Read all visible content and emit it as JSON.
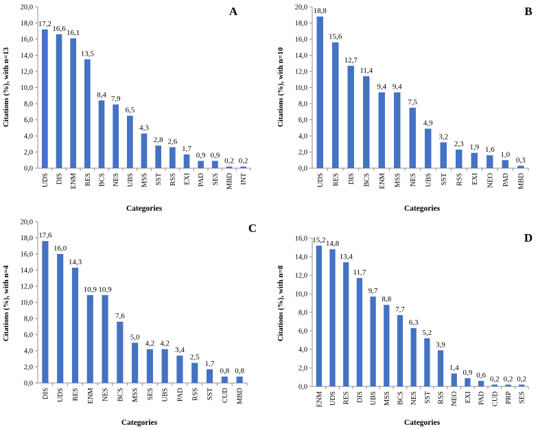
{
  "figure": {
    "colors": {
      "bar": "#4472C4",
      "axis": "#8c8c8c"
    }
  },
  "chart_data": [
    {
      "type": "bar",
      "panel": "A",
      "title": "",
      "xlabel": "Categories",
      "ylabel": "Citations (%), with n=13",
      "ylim": [
        0,
        20
      ],
      "yticks": [
        "0,0",
        "2,0",
        "4,0",
        "6,0",
        "8,0",
        "10,0",
        "12,0",
        "14,0",
        "16,0",
        "18,0",
        "20,0"
      ],
      "categories": [
        "UDS",
        "DIS",
        "ENM",
        "RES",
        "BCS",
        "NES",
        "UBS",
        "MSS",
        "SST",
        "RSS",
        "EXI",
        "PAD",
        "SES",
        "MBD",
        "INT"
      ],
      "values": [
        17.2,
        16.6,
        16.1,
        13.5,
        8.4,
        7.9,
        6.5,
        4.3,
        2.8,
        2.6,
        1.7,
        0.9,
        0.9,
        0.2,
        0.2
      ],
      "labels": [
        "17,2",
        "16,6",
        "16,1",
        "13,5",
        "8,4",
        "7,9",
        "6,5",
        "4,3",
        "2,8",
        "2,6",
        "1,7",
        "0,9",
        "0,9",
        "0,2",
        "0,2"
      ]
    },
    {
      "type": "bar",
      "panel": "B",
      "title": "",
      "xlabel": "Categories",
      "ylabel": "Citations (%), with n=10",
      "ylim": [
        0,
        20
      ],
      "yticks": [
        "0,0",
        "2,0",
        "4,0",
        "6,0",
        "8,0",
        "10,0",
        "12,0",
        "14,0",
        "16,0",
        "18,0",
        "20,0"
      ],
      "categories": [
        "UDS",
        "RES",
        "DIS",
        "BCS",
        "ENM",
        "MSS",
        "NES",
        "UBS",
        "SST",
        "RSS",
        "EXI",
        "NEO",
        "PAD",
        "MBD"
      ],
      "values": [
        18.8,
        15.6,
        12.7,
        11.4,
        9.4,
        9.4,
        7.5,
        4.9,
        3.2,
        2.3,
        1.9,
        1.6,
        1.0,
        0.3
      ],
      "labels": [
        "18,8",
        "15,6",
        "12,7",
        "11,4",
        "9,4",
        "9,4",
        "7,5",
        "4,9",
        "3,2",
        "2,3",
        "1,9",
        "1,6",
        "1,0",
        "0,3"
      ]
    },
    {
      "type": "bar",
      "panel": "C",
      "title": "",
      "xlabel": "Categories",
      "ylabel": "Citations (%), with n=4",
      "ylim": [
        0,
        20
      ],
      "yticks": [
        "0,0",
        "2,0",
        "4,0",
        "6,0",
        "8,0",
        "10,0",
        "12,0",
        "14,0",
        "16,0",
        "18,0",
        "20,0"
      ],
      "categories": [
        "DIS",
        "UDS",
        "RES",
        "ENM",
        "NES",
        "BCS",
        "MSS",
        "SES",
        "UBS",
        "PAD",
        "RSS",
        "SST",
        "CUD",
        "MBD"
      ],
      "values": [
        17.6,
        16.0,
        14.3,
        10.9,
        10.9,
        7.6,
        5.0,
        4.2,
        4.2,
        3.4,
        2.5,
        1.7,
        0.8,
        0.8
      ],
      "labels": [
        "17,6",
        "16,0",
        "14,3",
        "10,9",
        "10,9",
        "7,6",
        "5,0",
        "4,2",
        "4,2",
        "3,4",
        "2,5",
        "1,7",
        "0,8",
        "0,8"
      ]
    },
    {
      "type": "bar",
      "panel": "D",
      "title": "",
      "xlabel": "Categories",
      "ylabel": "Citations (%), with n=8",
      "ylim": [
        0,
        16
      ],
      "yticks": [
        "0,0",
        "2,0",
        "4,0",
        "6,0",
        "8,0",
        "10,0",
        "12,0",
        "14,0",
        "16,0"
      ],
      "categories": [
        "ENM",
        "UDS",
        "RES",
        "DIS",
        "UBS",
        "MSS",
        "BCS",
        "NES",
        "SST",
        "RSS",
        "NEO",
        "EXI",
        "PAD",
        "CUD",
        "PRP",
        "SES"
      ],
      "values": [
        15.2,
        14.8,
        13.4,
        11.7,
        9.7,
        8.8,
        7.7,
        6.3,
        5.2,
        3.9,
        1.4,
        0.9,
        0.6,
        0.2,
        0.2,
        0.2
      ],
      "labels": [
        "15,2",
        "14,8",
        "13,4",
        "11,7",
        "9,7",
        "8,8",
        "7,7",
        "6,3",
        "5,2",
        "3,9",
        "1,4",
        "0,9",
        "0,6",
        "0,2",
        "0,2",
        "0,2"
      ]
    }
  ]
}
